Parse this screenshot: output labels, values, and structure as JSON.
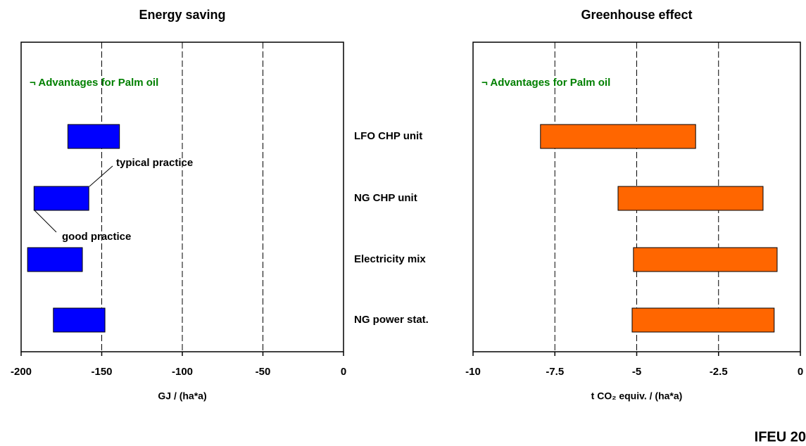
{
  "chart_data": [
    {
      "type": "range_bar",
      "title": "Energy saving",
      "xlabel": "GJ / (ha*a)",
      "annotation": "¬  Advantages for Palm oil",
      "color": "#0000ff",
      "low": [
        -171,
        -192,
        -196,
        -180
      ],
      "high": [
        -139,
        -158,
        -162,
        -148
      ],
      "xlim": [
        -200,
        0
      ],
      "xticks": [
        -200,
        -150,
        -100,
        -50,
        0
      ],
      "grid": true,
      "callouts": [
        "typical practice",
        "good practice"
      ]
    },
    {
      "type": "range_bar",
      "title": "Greenhouse effect",
      "xlabel": "t CO₂ equiv. / (ha*a)",
      "annotation": "¬  Advantages for Palm oil",
      "color": "#ff6600",
      "categories": [
        "LFO CHP unit",
        "NG CHP unit",
        "Electricity mix",
        "NG power stat."
      ],
      "low": [
        -7.94,
        -5.57,
        -5.1,
        -5.14
      ],
      "high": [
        -3.2,
        -1.14,
        -0.71,
        -0.8
      ],
      "xlim": [
        -10,
        0
      ],
      "xticks": [
        -10,
        -7.5,
        -5,
        -2.5,
        0
      ],
      "grid": true
    }
  ],
  "footer": "IFEU 20"
}
